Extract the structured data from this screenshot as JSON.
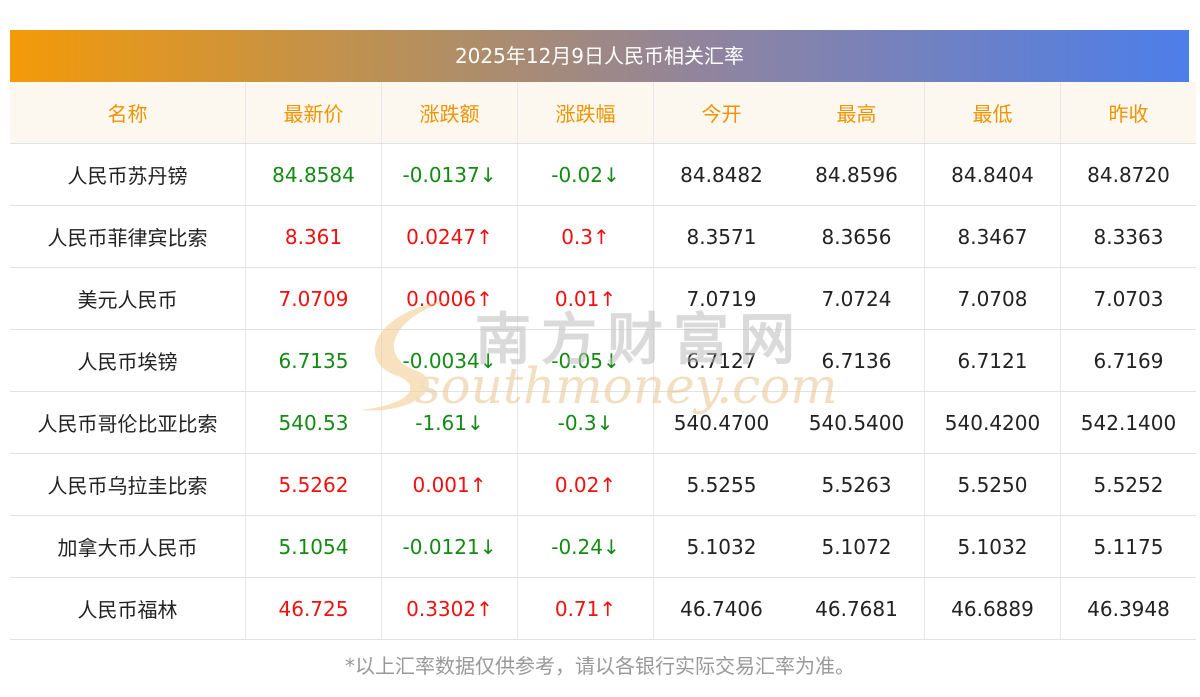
{
  "title": "2025年12月9日人民币相关汇率",
  "columns": [
    "名称",
    "最新价",
    "涨跌额",
    "涨跌幅",
    "今开",
    "最高",
    "最低",
    "昨收"
  ],
  "rows": [
    {
      "name": "人民币苏丹镑",
      "latest": "84.8584",
      "change": "-0.0137↓",
      "pct": "-0.02↓",
      "open": "84.8482",
      "high": "84.8596",
      "low": "84.8404",
      "prev": "84.8720",
      "trend": "down"
    },
    {
      "name": "人民币菲律宾比索",
      "latest": "8.361",
      "change": "0.0247↑",
      "pct": "0.3↑",
      "open": "8.3571",
      "high": "8.3656",
      "low": "8.3467",
      "prev": "8.3363",
      "trend": "up"
    },
    {
      "name": "美元人民币",
      "latest": "7.0709",
      "change": "0.0006↑",
      "pct": "0.01↑",
      "open": "7.0719",
      "high": "7.0724",
      "low": "7.0708",
      "prev": "7.0703",
      "trend": "up"
    },
    {
      "name": "人民币埃镑",
      "latest": "6.7135",
      "change": "-0.0034↓",
      "pct": "-0.05↓",
      "open": "6.7127",
      "high": "6.7136",
      "low": "6.7121",
      "prev": "6.7169",
      "trend": "down"
    },
    {
      "name": "人民币哥伦比亚比索",
      "latest": "540.53",
      "change": "-1.61↓",
      "pct": "-0.3↓",
      "open": "540.4700",
      "high": "540.5400",
      "low": "540.4200",
      "prev": "542.1400",
      "trend": "down"
    },
    {
      "name": "人民币乌拉圭比索",
      "latest": "5.5262",
      "change": "0.001↑",
      "pct": "0.02↑",
      "open": "5.5255",
      "high": "5.5263",
      "low": "5.5250",
      "prev": "5.5252",
      "trend": "up"
    },
    {
      "name": "加拿大币人民币",
      "latest": "5.1054",
      "change": "-0.0121↓",
      "pct": "-0.24↓",
      "open": "5.1032",
      "high": "5.1072",
      "low": "5.1032",
      "prev": "5.1175",
      "trend": "down"
    },
    {
      "name": "人民币福林",
      "latest": "46.725",
      "change": "0.3302↑",
      "pct": "0.71↑",
      "open": "46.7406",
      "high": "46.7681",
      "low": "46.6889",
      "prev": "46.3948",
      "trend": "up"
    }
  ],
  "footer": "*以上汇率数据仅供参考，请以各银行实际交易汇率为准。",
  "watermark": {
    "cn": "南方财富网",
    "en": "southmoney.com"
  },
  "colors": {
    "up": "#f01010",
    "down": "#148a14",
    "header_text": "#f09300"
  }
}
